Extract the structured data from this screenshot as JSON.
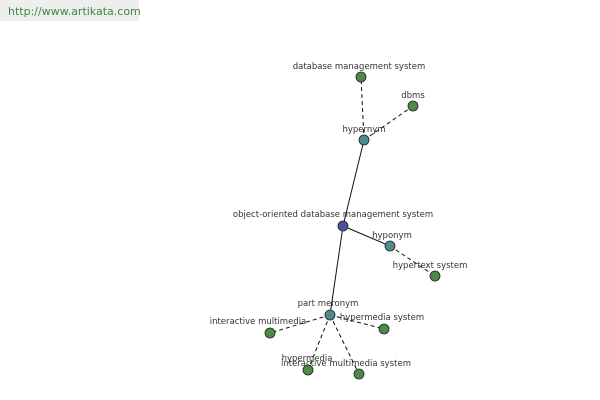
{
  "header": {
    "url": "http://www.artikata.com"
  },
  "nodes": [
    {
      "label": "object-oriented database management system"
    },
    {
      "label": "hypernym"
    },
    {
      "label": "database management system"
    },
    {
      "label": "dbms"
    },
    {
      "label": "hyponym"
    },
    {
      "label": "hypertext system"
    },
    {
      "label": "part meronym"
    },
    {
      "label": "interactive multimedia"
    },
    {
      "label": "hypermedia system"
    },
    {
      "label": "hypermedia"
    },
    {
      "label": "interactive multimedia system"
    }
  ]
}
